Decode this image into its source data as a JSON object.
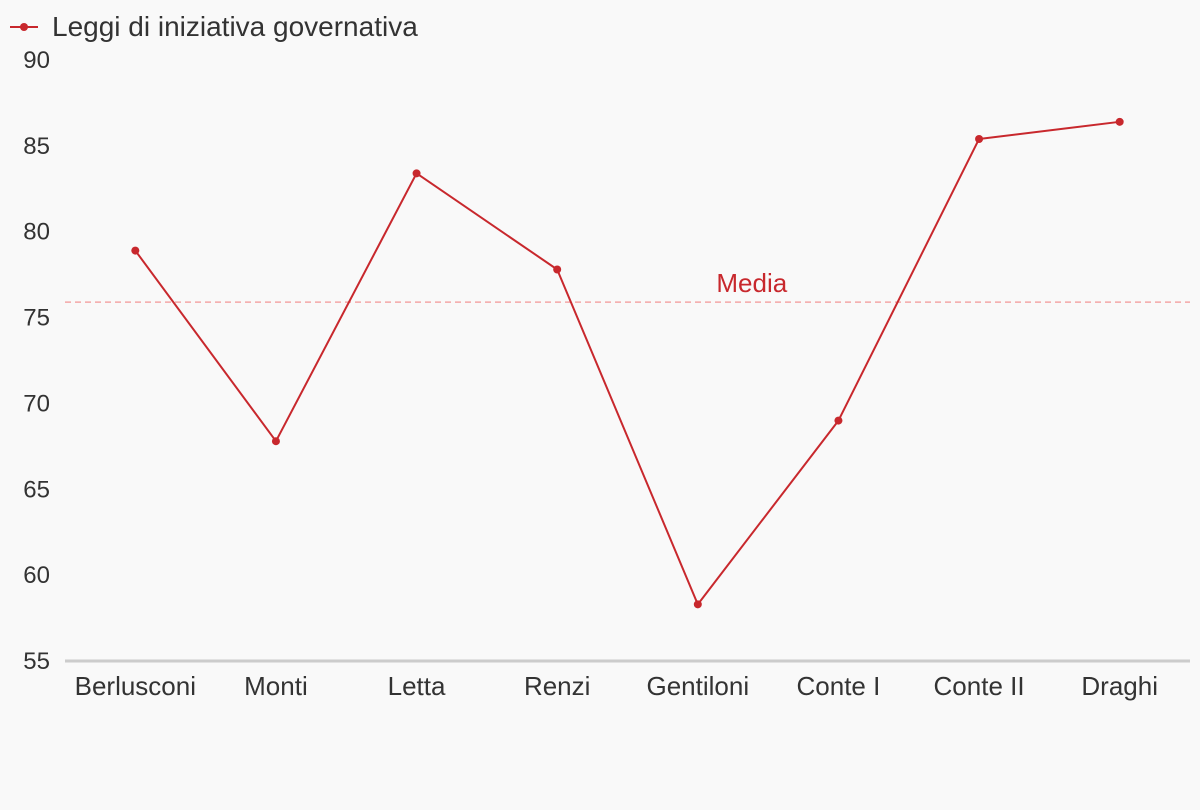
{
  "chart_data": {
    "type": "line",
    "categories": [
      "Berlusconi",
      "Monti",
      "Letta",
      "Renzi",
      "Gentiloni",
      "Conte I",
      "Conte II",
      "Draghi"
    ],
    "series": [
      {
        "name": "Leggi di iniziativa governativa",
        "values": [
          78.9,
          67.8,
          83.4,
          77.8,
          58.3,
          69.0,
          85.4,
          86.4
        ],
        "color": "#c8282d"
      }
    ],
    "ylim": [
      55,
      90
    ],
    "yticks": [
      55,
      60,
      65,
      70,
      75,
      80,
      85,
      90
    ],
    "reference_line": {
      "label": "Media",
      "value": 75.9,
      "color": "#f4a7a7",
      "label_color": "#c8282d"
    },
    "legend_position": "top-left",
    "grid": false
  }
}
